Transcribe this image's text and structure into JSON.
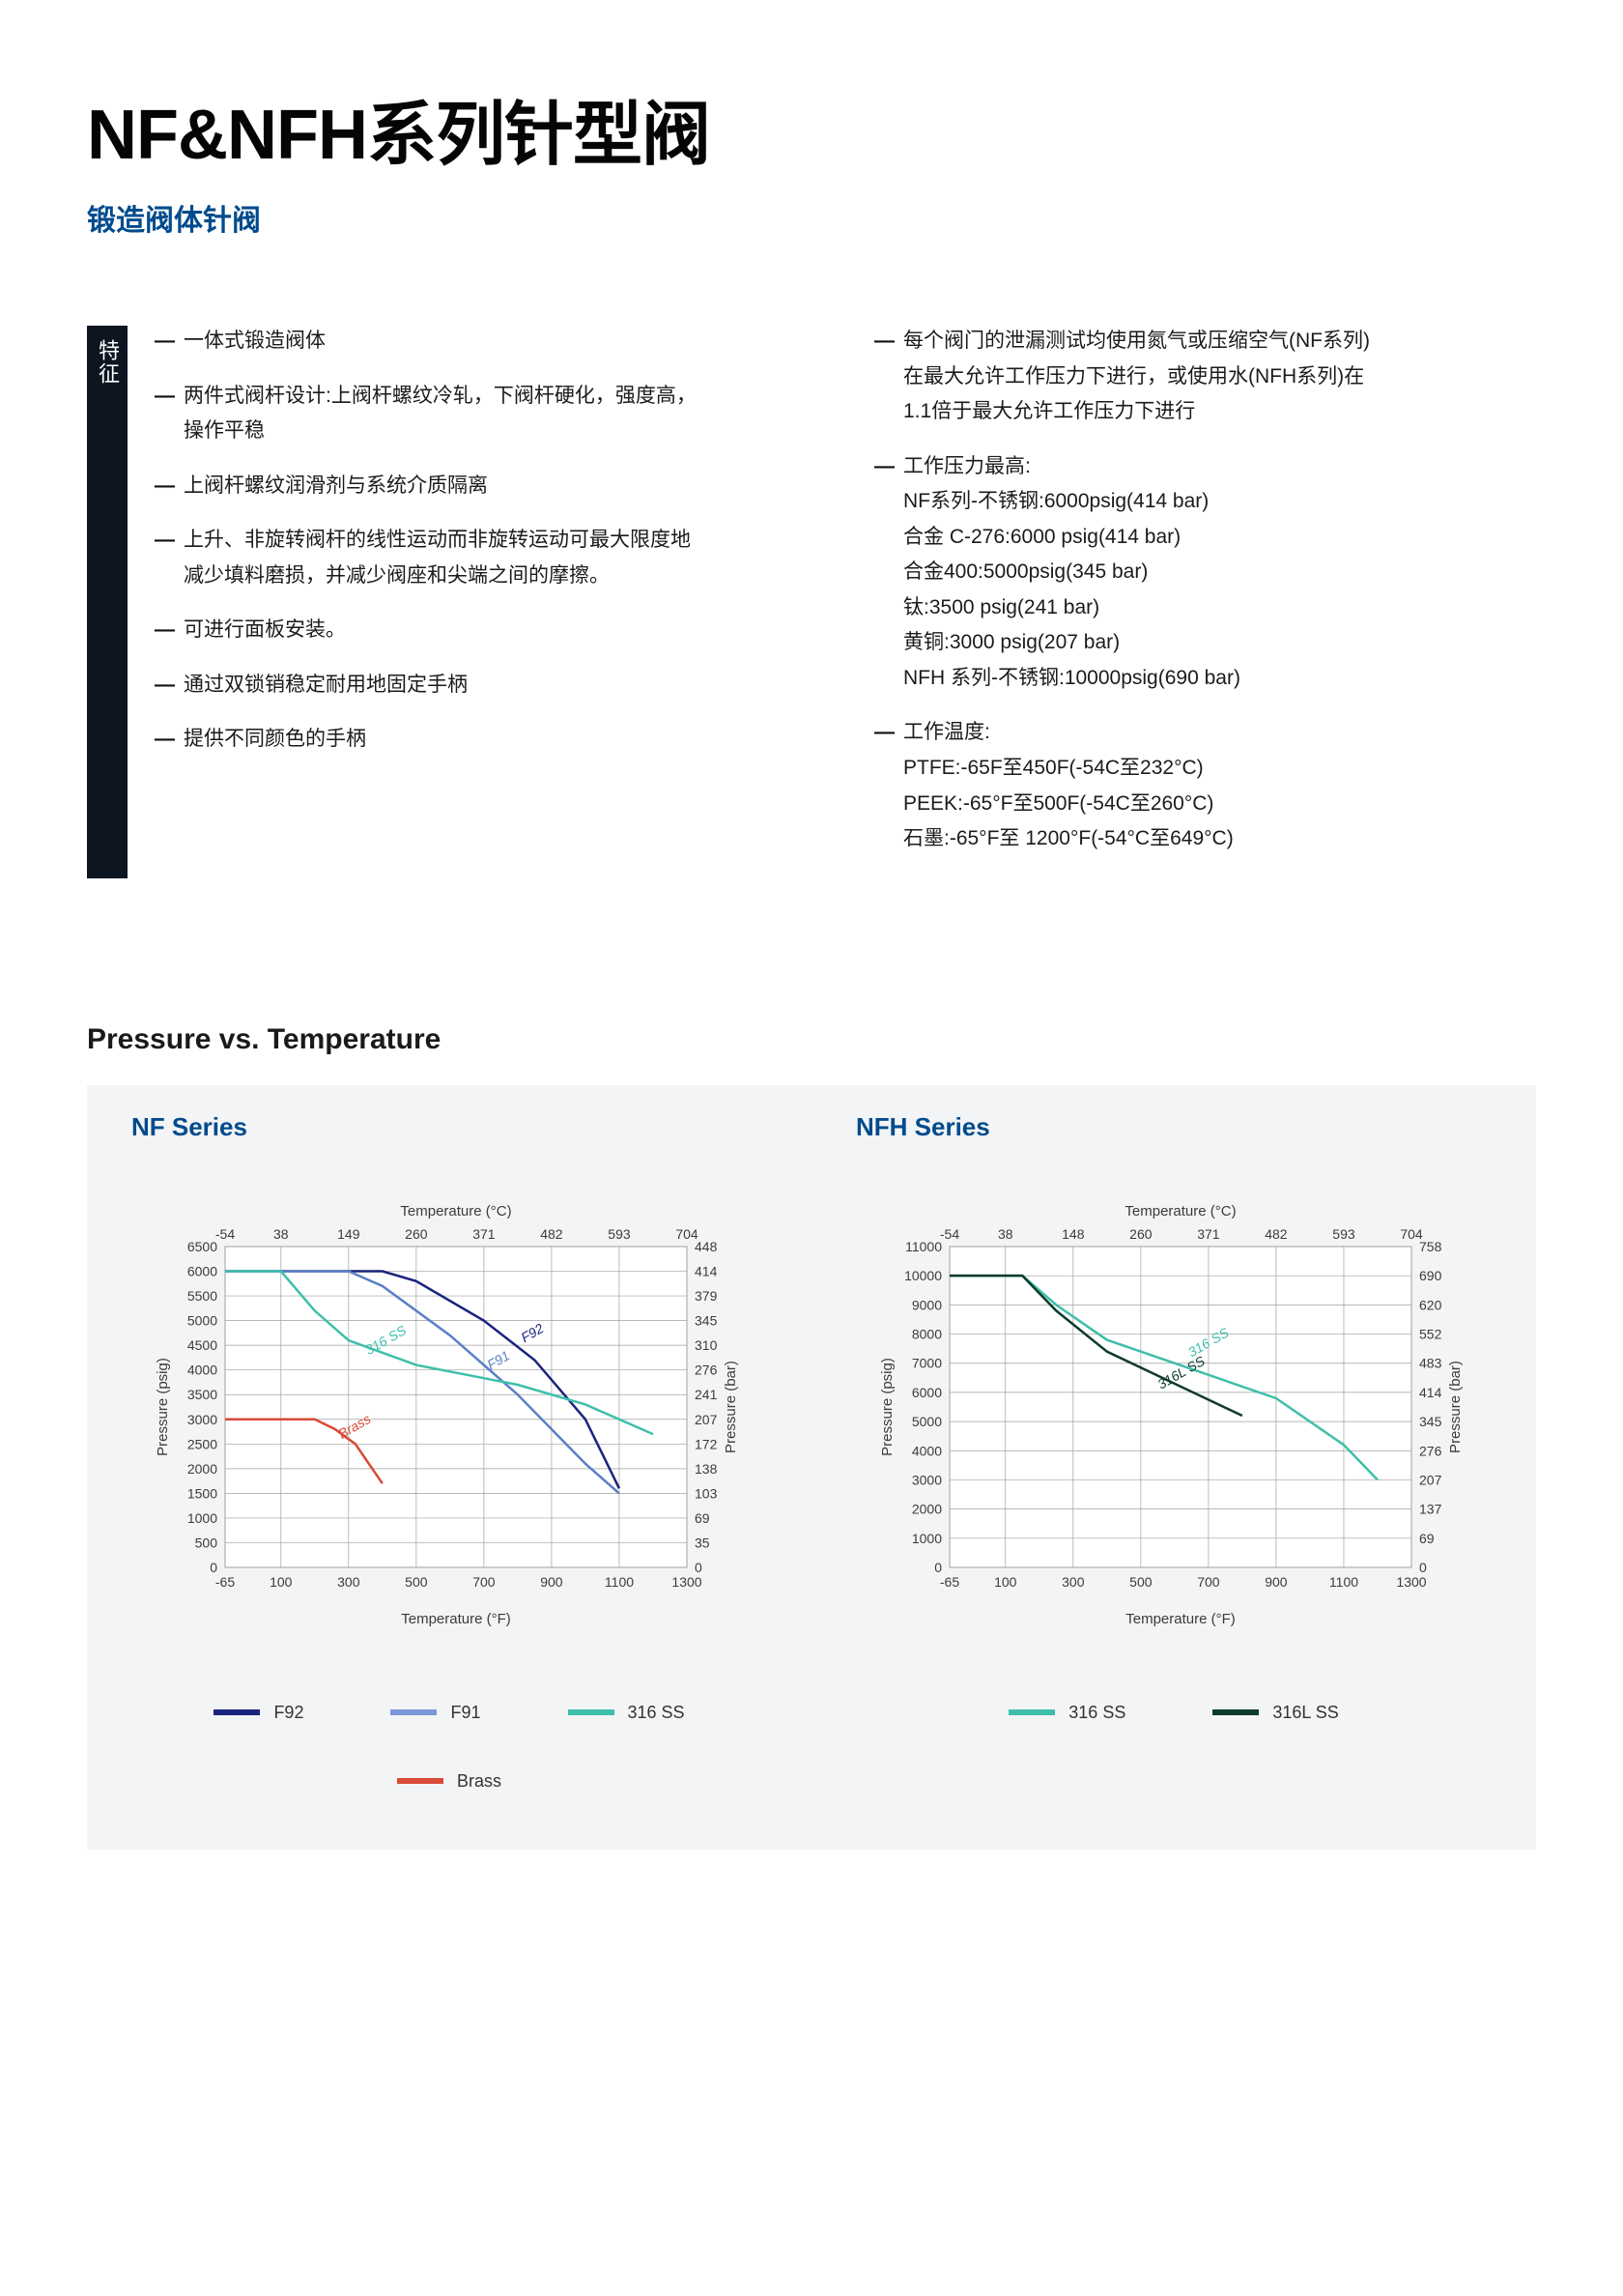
{
  "title": "NF&NFH系列针型阀",
  "subtitle": "锻造阀体针阀",
  "sidebar_label": "特征",
  "features_left": [
    {
      "lines": [
        "一体式锻造阀体"
      ]
    },
    {
      "lines": [
        "两件式阀杆设计:上阀杆螺纹冷轧，下阀杆硬化，强度高，",
        "操作平稳"
      ]
    },
    {
      "lines": [
        "上阀杆螺纹润滑剂与系统介质隔离"
      ]
    },
    {
      "lines": [
        "上升、非旋转阀杆的线性运动而非旋转运动可最大限度地",
        "减少填料磨损，并减少阀座和尖端之间的摩擦。"
      ]
    },
    {
      "lines": [
        "可进行面板安装。"
      ]
    },
    {
      "lines": [
        "通过双锁销稳定耐用地固定手柄"
      ]
    },
    {
      "lines": [
        "提供不同颜色的手柄"
      ]
    }
  ],
  "features_right": [
    {
      "lines": [
        "每个阀门的泄漏测试均使用氮气或压缩空气(NF系列)",
        "在最大允许工作压力下进行，或使用水(NFH系列)在",
        "1.1倍于最大允许工作压力下进行"
      ]
    },
    {
      "lines": [
        "工作压力最高:",
        "NF系列-不锈钢:6000psig(414 bar)",
        "合金 C-276:6000 psig(414 bar)",
        "合金400:5000psig(345 bar)",
        "钛:3500 psig(241 bar)",
        "黄铜:3000 psig(207 bar)",
        "NFH 系列-不锈钢:10000psig(690 bar)"
      ]
    },
    {
      "lines": [
        "工作温度:",
        "PTFE:-65F至450F(-54C至232°C)",
        "PEEK:-65°F至500F(-54C至260°C)",
        "石墨:-65°F至 1200°F(-54°C至649°C)"
      ]
    }
  ],
  "section_title": "Pressure vs. Temperature",
  "nf_chart": {
    "title": "NF Series",
    "type": "line",
    "x_label": "Temperature (°F)",
    "x_label_top": "Temperature (°C)",
    "y_label_left": "Pressure (psig)",
    "y_label_right": "Pressure (bar)",
    "xlim": [
      -65,
      1300
    ],
    "ylim": [
      0,
      6500
    ],
    "x_ticks_f": [
      -65,
      100,
      300,
      500,
      700,
      900,
      1100,
      1300
    ],
    "x_ticks_c": [
      -54,
      38,
      149,
      260,
      371,
      482,
      593,
      704
    ],
    "y_ticks_psig": [
      0,
      500,
      1000,
      1500,
      2000,
      2500,
      3000,
      3500,
      4000,
      4500,
      5000,
      5500,
      6000,
      6500
    ],
    "y_ticks_bar": [
      0,
      35,
      69,
      103,
      138,
      172,
      207,
      241,
      276,
      310,
      345,
      379,
      414,
      448
    ],
    "series": [
      {
        "name": "F92",
        "label": "F92",
        "color": "#1a237e",
        "width": 2.5,
        "points": [
          [
            -65,
            6000
          ],
          [
            400,
            6000
          ],
          [
            500,
            5800
          ],
          [
            700,
            5000
          ],
          [
            850,
            4200
          ],
          [
            1000,
            3000
          ],
          [
            1100,
            1600
          ]
        ]
      },
      {
        "name": "F91",
        "label": "F91",
        "color": "#5b7fc7",
        "width": 2.5,
        "points": [
          [
            -65,
            6000
          ],
          [
            300,
            6000
          ],
          [
            400,
            5700
          ],
          [
            600,
            4700
          ],
          [
            800,
            3500
          ],
          [
            1000,
            2100
          ],
          [
            1100,
            1500
          ]
        ]
      },
      {
        "name": "316 SS",
        "label": "316 SS",
        "color": "#3fbfa9",
        "width": 2.5,
        "points": [
          [
            -65,
            6000
          ],
          [
            100,
            6000
          ],
          [
            200,
            5200
          ],
          [
            300,
            4600
          ],
          [
            500,
            4100
          ],
          [
            800,
            3700
          ],
          [
            1000,
            3300
          ],
          [
            1200,
            2700
          ]
        ]
      },
      {
        "name": "Brass",
        "label": "Brass",
        "color": "#d84a3a",
        "width": 2.5,
        "points": [
          [
            -65,
            3000
          ],
          [
            200,
            3000
          ],
          [
            260,
            2800
          ],
          [
            320,
            2500
          ],
          [
            400,
            1700
          ]
        ]
      }
    ],
    "series_labels": [
      {
        "text": "F92",
        "x": 820,
        "y": 4550,
        "color": "#1a237e"
      },
      {
        "text": "F91",
        "x": 720,
        "y": 4000,
        "color": "#5b7fc7"
      },
      {
        "text": "316 SS",
        "x": 360,
        "y": 4300,
        "color": "#3fbfa9"
      },
      {
        "text": "Brass",
        "x": 280,
        "y": 2600,
        "color": "#d84a3a"
      }
    ],
    "grid_color": "#a0a0a0",
    "background": "#ffffff",
    "font_color": "#3b3b3b",
    "tick_fontsize": 14,
    "label_fontsize": 15
  },
  "nfh_chart": {
    "title": "NFH Series",
    "type": "line",
    "x_label": "Temperature (°F)",
    "x_label_top": "Temperature (°C)",
    "y_label_left": "Pressure (psig)",
    "y_label_right": "Pressure (bar)",
    "xlim": [
      -65,
      1300
    ],
    "ylim": [
      0,
      11000
    ],
    "x_ticks_f": [
      -65,
      100,
      300,
      500,
      700,
      900,
      1100,
      1300
    ],
    "x_ticks_c": [
      -54,
      38,
      148,
      260,
      371,
      482,
      593,
      704
    ],
    "y_ticks_psig": [
      0,
      1000,
      2000,
      3000,
      4000,
      5000,
      6000,
      7000,
      8000,
      9000,
      10000,
      11000
    ],
    "y_ticks_bar": [
      0,
      69,
      137,
      207,
      276,
      345,
      414,
      483,
      552,
      620,
      690,
      758
    ],
    "series": [
      {
        "name": "316 SS",
        "label": "316 SS",
        "color": "#3fbfa9",
        "width": 2.5,
        "points": [
          [
            -65,
            10000
          ],
          [
            150,
            10000
          ],
          [
            250,
            9000
          ],
          [
            400,
            7800
          ],
          [
            600,
            7000
          ],
          [
            900,
            5800
          ],
          [
            1100,
            4200
          ],
          [
            1200,
            3000
          ]
        ]
      },
      {
        "name": "316L SS",
        "label": "316L SS",
        "color": "#0d3b2e",
        "width": 2.5,
        "points": [
          [
            -65,
            10000
          ],
          [
            150,
            10000
          ],
          [
            250,
            8800
          ],
          [
            400,
            7400
          ],
          [
            600,
            6300
          ],
          [
            800,
            5200
          ]
        ]
      }
    ],
    "series_labels": [
      {
        "text": "316 SS",
        "x": 650,
        "y": 7200,
        "color": "#3fbfa9"
      },
      {
        "text": "316L SS",
        "x": 560,
        "y": 6100,
        "color": "#0d3b2e"
      }
    ],
    "grid_color": "#a0a0a0",
    "background": "#ffffff",
    "font_color": "#3b3b3b",
    "tick_fontsize": 14,
    "label_fontsize": 15
  },
  "nf_legend": [
    {
      "label": "F92",
      "color": "#1a237e"
    },
    {
      "label": "F91",
      "color": "#7a98d8"
    },
    {
      "label": "316 SS",
      "color": "#3fbfa9"
    },
    {
      "label": "Brass",
      "color": "#d84a3a"
    }
  ],
  "nfh_legend": [
    {
      "label": "316 SS",
      "color": "#3fbfa9"
    },
    {
      "label": "316L SS",
      "color": "#0d3b2e"
    }
  ]
}
